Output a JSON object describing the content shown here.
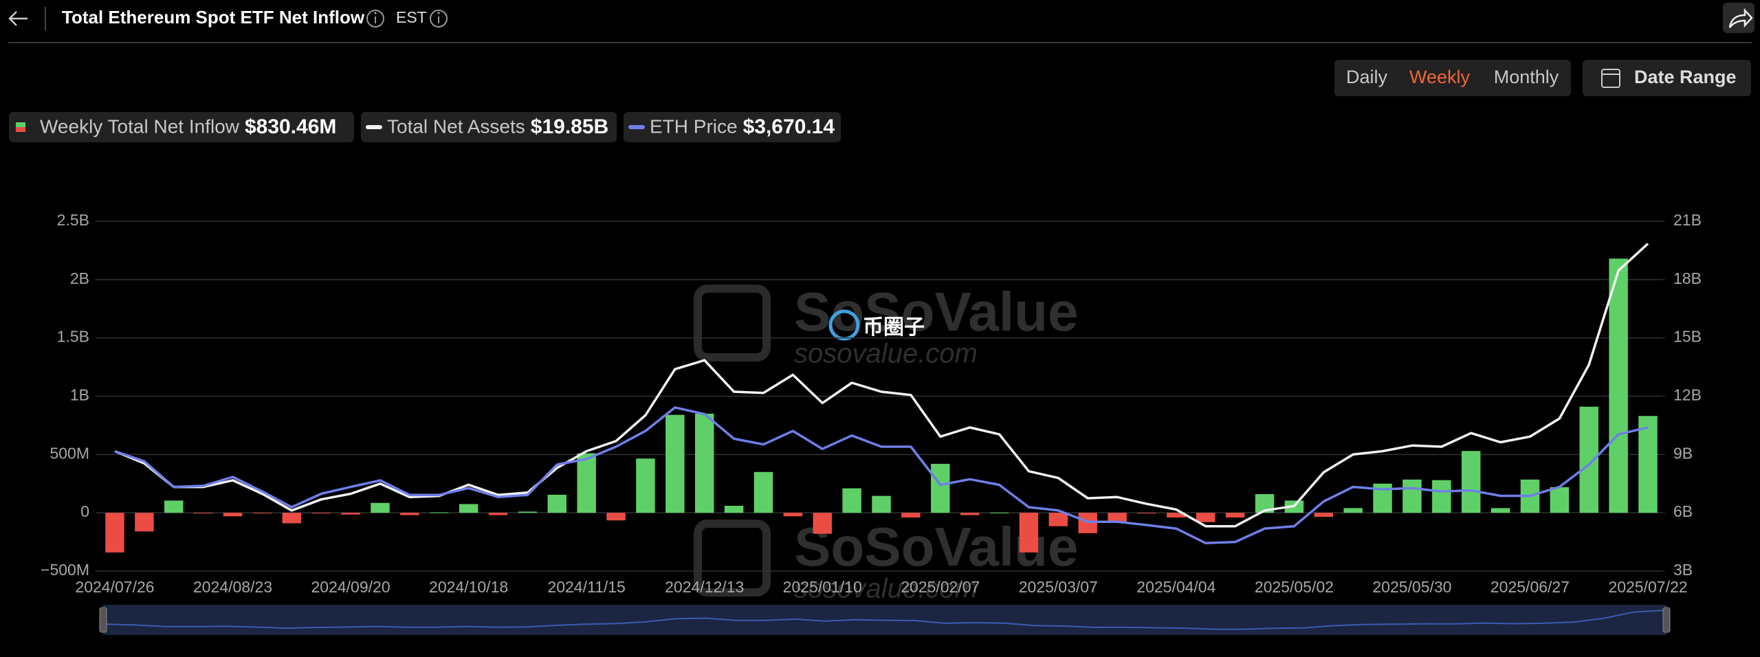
{
  "header": {
    "title": "Total Ethereum Spot ETF Net Inflow",
    "timezone": "EST"
  },
  "controls": {
    "periods": [
      "Daily",
      "Weekly",
      "Monthly"
    ],
    "active_period": 1,
    "date_range": "Date Range"
  },
  "watermark": {
    "brand": "SoSoValue",
    "site": "sosovalue.com",
    "overlay": "币圈子"
  },
  "chart_data": {
    "type": "combo",
    "categories": [
      "2024/07/26",
      null,
      null,
      null,
      "2024/08/23",
      null,
      null,
      null,
      "2024/09/20",
      null,
      null,
      null,
      "2024/10/18",
      null,
      null,
      null,
      "2024/11/15",
      null,
      null,
      null,
      "2024/12/13",
      null,
      null,
      null,
      "2025/01/10",
      null,
      null,
      null,
      "2025/02/07",
      null,
      null,
      null,
      "2025/03/07",
      null,
      null,
      null,
      "2025/04/04",
      null,
      null,
      null,
      "2025/05/02",
      null,
      null,
      null,
      "2025/05/30",
      null,
      null,
      null,
      "2025/06/27",
      null,
      null,
      null,
      "2025/07/22"
    ],
    "series": [
      {
        "name": "Weekly Total Net Inflow",
        "type": "bar",
        "axis": "y",
        "color": "#5fd068",
        "negative_color": "#eb4d45",
        "legend_value": "$830.46M",
        "values": [
          -340000000,
          -160000000,
          105000000,
          -5000000,
          -30000000,
          -5000000,
          -90000000,
          -5000000,
          -15000000,
          85000000,
          -20000000,
          3000000,
          75000000,
          -20000000,
          10000000,
          155000000,
          510000000,
          -65000000,
          465000000,
          840000000,
          850000000,
          60000000,
          350000000,
          -30000000,
          -180000000,
          210000000,
          145000000,
          -40000000,
          420000000,
          -20000000,
          2000000,
          -340000000,
          -115000000,
          -175000000,
          -85000000,
          -5000000,
          -40000000,
          -80000000,
          -40000000,
          160000000,
          105000000,
          -35000000,
          40000000,
          250000000,
          285000000,
          280000000,
          530000000,
          40000000,
          285000000,
          220000000,
          910000000,
          2180000000,
          830460000
        ]
      },
      {
        "name": "Total Net Assets",
        "type": "line",
        "axis": "y2",
        "color": "#f2f2f2",
        "legend_value": "$19.85B",
        "values": [
          9170000000,
          8540000000,
          7330000000,
          7330000000,
          7670000000,
          6980000000,
          6120000000,
          6690000000,
          6980000000,
          7500000000,
          6810000000,
          6870000000,
          7440000000,
          6920000000,
          7040000000,
          8310000000,
          9170000000,
          9690000000,
          11020000000,
          13390000000,
          13850000000,
          12230000000,
          12170000000,
          13100000000,
          11650000000,
          12690000000,
          12230000000,
          12060000000,
          9920000000,
          10390000000,
          10040000000,
          8140000000,
          7790000000,
          6750000000,
          6810000000,
          6460000000,
          6170000000,
          5310000000,
          5310000000,
          6120000000,
          6350000000,
          8080000000,
          9000000000,
          9170000000,
          9460000000,
          9400000000,
          10100000000,
          9630000000,
          9920000000,
          10850000000,
          13620000000,
          18460000000,
          19850000000
        ]
      },
      {
        "name": "ETH Price",
        "type": "line",
        "axis": "y3",
        "color": "#6f7fe8",
        "legend_value": "$3,670.14",
        "values": [
          3228,
          3040,
          2564,
          2585,
          2750,
          2480,
          2188,
          2437,
          2564,
          2686,
          2415,
          2415,
          2542,
          2376,
          2415,
          2979,
          3083,
          3311,
          3604,
          4040,
          3918,
          3459,
          3354,
          3604,
          3271,
          3520,
          3311,
          3311,
          2603,
          2708,
          2603,
          2188,
          2127,
          1917,
          1917,
          1856,
          1791,
          1520,
          1542,
          1791,
          1834,
          2293,
          2564,
          2520,
          2542,
          2480,
          2499,
          2398,
          2398,
          2564,
          2979,
          3542,
          3670.14
        ]
      }
    ],
    "ylim": [
      -500000000,
      2500000000
    ],
    "yticks": [
      {
        "value": -500000000,
        "label": "−500M"
      },
      0,
      {
        "value": 500000000,
        "label": "500M"
      },
      {
        "value": 1000000000,
        "label": "1B"
      },
      {
        "value": 1500000000,
        "label": "1.5B"
      },
      {
        "value": 2000000000,
        "label": "2B"
      },
      {
        "value": 2500000000,
        "label": "2.5B"
      }
    ],
    "y2lim": [
      3000000000,
      21000000000
    ],
    "y2ticks": [
      {
        "value": 3000000000,
        "label": "3B"
      },
      {
        "value": 6000000000,
        "label": "6B"
      },
      {
        "value": 9000000000,
        "label": "9B"
      },
      {
        "value": 12000000000,
        "label": "12B"
      },
      {
        "value": 15000000000,
        "label": "15B"
      },
      {
        "value": 18000000000,
        "label": "18B"
      },
      {
        "value": 21000000000,
        "label": "21B"
      }
    ],
    "y3lim": [
      1000,
      7500
    ],
    "grid": true
  }
}
